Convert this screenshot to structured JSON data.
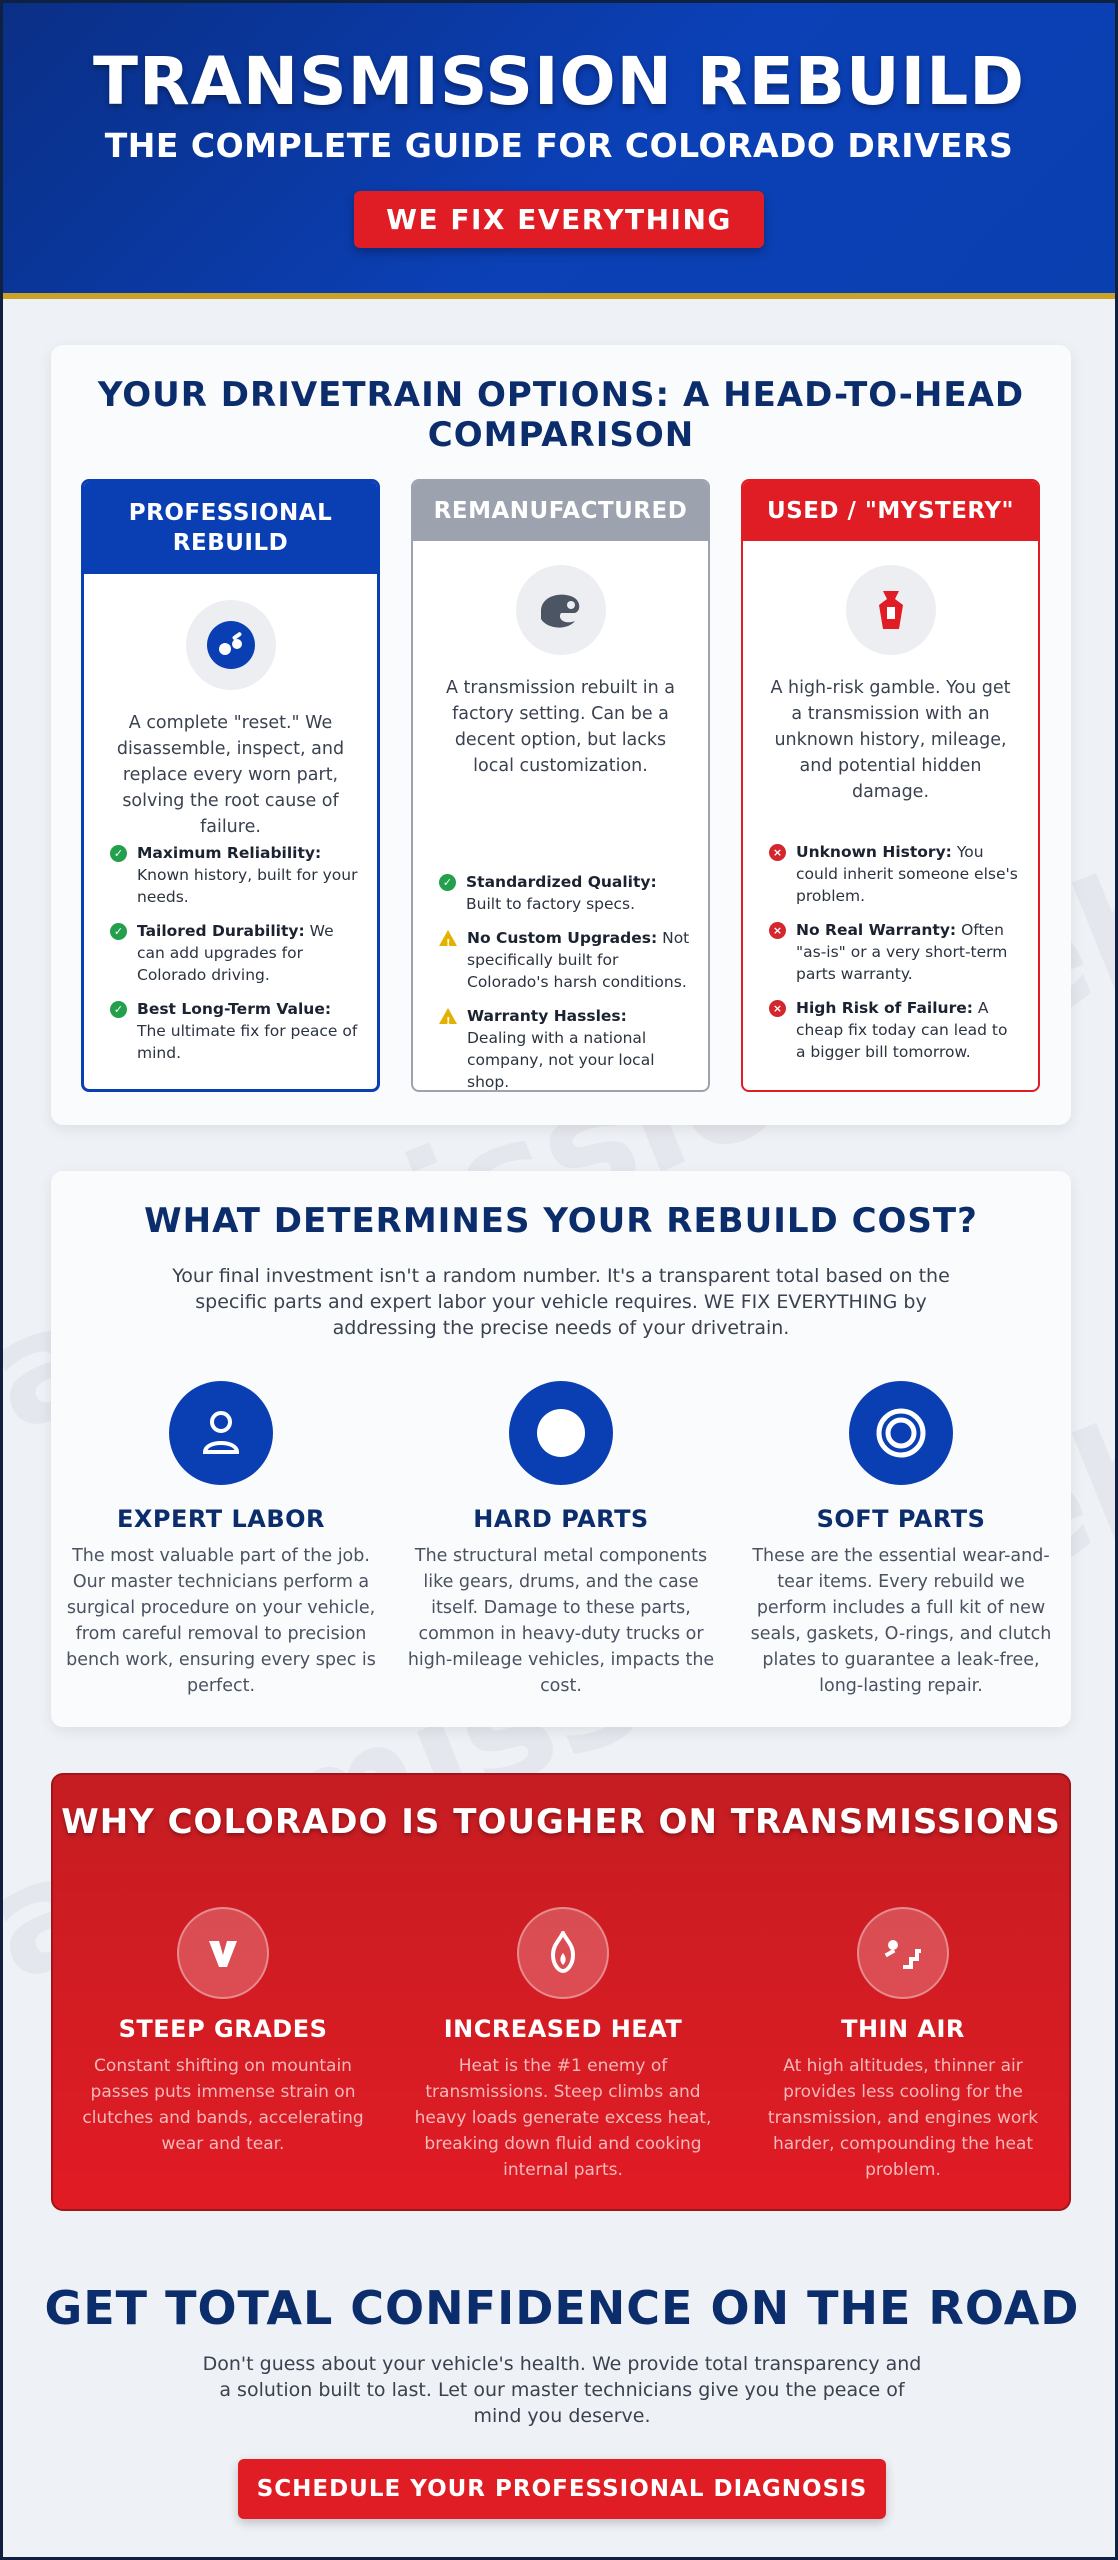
{
  "hero": {
    "title": "TRANSMISSION REBUILD",
    "subtitle": "THE COMPLETE GUIDE FOR COLORADO DRIVERS",
    "badge": "WE FIX EVERYTHING"
  },
  "options": {
    "title": "YOUR DRIVETRAIN OPTIONS: A HEAD-TO-HEAD COMPARISON",
    "cards": [
      {
        "header": "PROFESSIONAL REBUILD",
        "header_color": "#0a3fb4",
        "icon": "gears-icon",
        "desc": "A complete \"reset.\" We disassemble, inspect, and replace every worn part, solving the root cause of failure.",
        "items": [
          {
            "type": "check",
            "title": "Maximum Reliability:",
            "text": "Known history, built for your needs."
          },
          {
            "type": "check",
            "title": "Tailored Durability:",
            "text": "We can add upgrades for Colorado driving."
          },
          {
            "type": "check",
            "title": "Best Long-Term Value:",
            "text": "The ultimate fix for peace of mind."
          }
        ]
      },
      {
        "header": "REMANUFACTURED",
        "header_color": "#9ca3af",
        "icon": "factory-icon",
        "desc": "A transmission rebuilt in a factory setting. Can be a decent option, but lacks local customization.",
        "items": [
          {
            "type": "check",
            "title": "Standardized Quality:",
            "text": "Built to factory specs."
          },
          {
            "type": "warn",
            "title": "No Custom Upgrades:",
            "text": "Not specifically built for Colorado's harsh conditions."
          },
          {
            "type": "warn",
            "title": "Warranty Hassles:",
            "text": "Dealing with a national company, not your local shop."
          }
        ]
      },
      {
        "header": "USED / \"MYSTERY\"",
        "header_color": "#e01c24",
        "icon": "mystery-box-icon",
        "desc": "A high-risk gamble. You get a transmission with an unknown history, mileage, and potential hidden damage.",
        "items": [
          {
            "type": "x",
            "title": "Unknown History:",
            "text": "You could inherit someone else's problem."
          },
          {
            "type": "x",
            "title": "No Real Warranty:",
            "text": "Often \"as-is\" or a very short-term parts warranty."
          },
          {
            "type": "x",
            "title": "High Risk of Failure:",
            "text": "A cheap fix today can lead to a bigger bill tomorrow."
          }
        ]
      }
    ]
  },
  "cost": {
    "title": "WHAT DETERMINES YOUR REBUILD COST?",
    "intro": "Your final investment isn't a random number. It's a transparent total based on the specific parts and expert labor your vehicle requires. WE FIX EVERYTHING by addressing the precise needs of your drivetrain.",
    "pillars": [
      {
        "title": "EXPERT LABOR",
        "icon": "technician-icon",
        "text": "The most valuable part of the job. Our master technicians perform a surgical procedure on your vehicle, from careful removal to precision bench work, ensuring every spec is perfect."
      },
      {
        "title": "HARD PARTS",
        "icon": "solid-disc-icon",
        "text": "The structural metal components like gears, drums, and the case itself. Damage to these parts, common in heavy-duty trucks or high-mileage vehicles, impacts the cost."
      },
      {
        "title": "SOFT PARTS",
        "icon": "o-ring-icon",
        "text": "These are the essential wear-and-tear items. Every rebuild we perform includes a full kit of new seals, gaskets, O-rings, and clutch plates to guarantee a leak-free, long-lasting repair."
      }
    ]
  },
  "colorado": {
    "title": "WHY COLORADO IS TOUGHER ON TRANSMISSIONS",
    "columns": [
      {
        "title": "STEEP GRADES",
        "icon": "mountain-chevron-icon",
        "text": "Constant shifting on mountain passes puts immense strain on clutches and bands, accelerating wear and tear."
      },
      {
        "title": "INCREASED HEAT",
        "icon": "flame-icon",
        "text": "Heat is the #1 enemy of transmissions. Steep climbs and heavy loads generate excess heat, breaking down fluid and cooking internal parts."
      },
      {
        "title": "THIN AIR",
        "icon": "stairs-climb-icon",
        "text": "At high altitudes, thinner air provides less cooling for the transmission, and engines work harder, compounding the heat problem."
      }
    ]
  },
  "cta": {
    "title": "GET TOTAL CONFIDENCE ON THE ROAD",
    "text": "Don't guess about your vehicle's health. We provide total transparency and a solution built to last. Let our master technicians give you the peace of mind you deserve.",
    "button": "SCHEDULE YOUR PROFESSIONAL DIAGNOSIS"
  }
}
